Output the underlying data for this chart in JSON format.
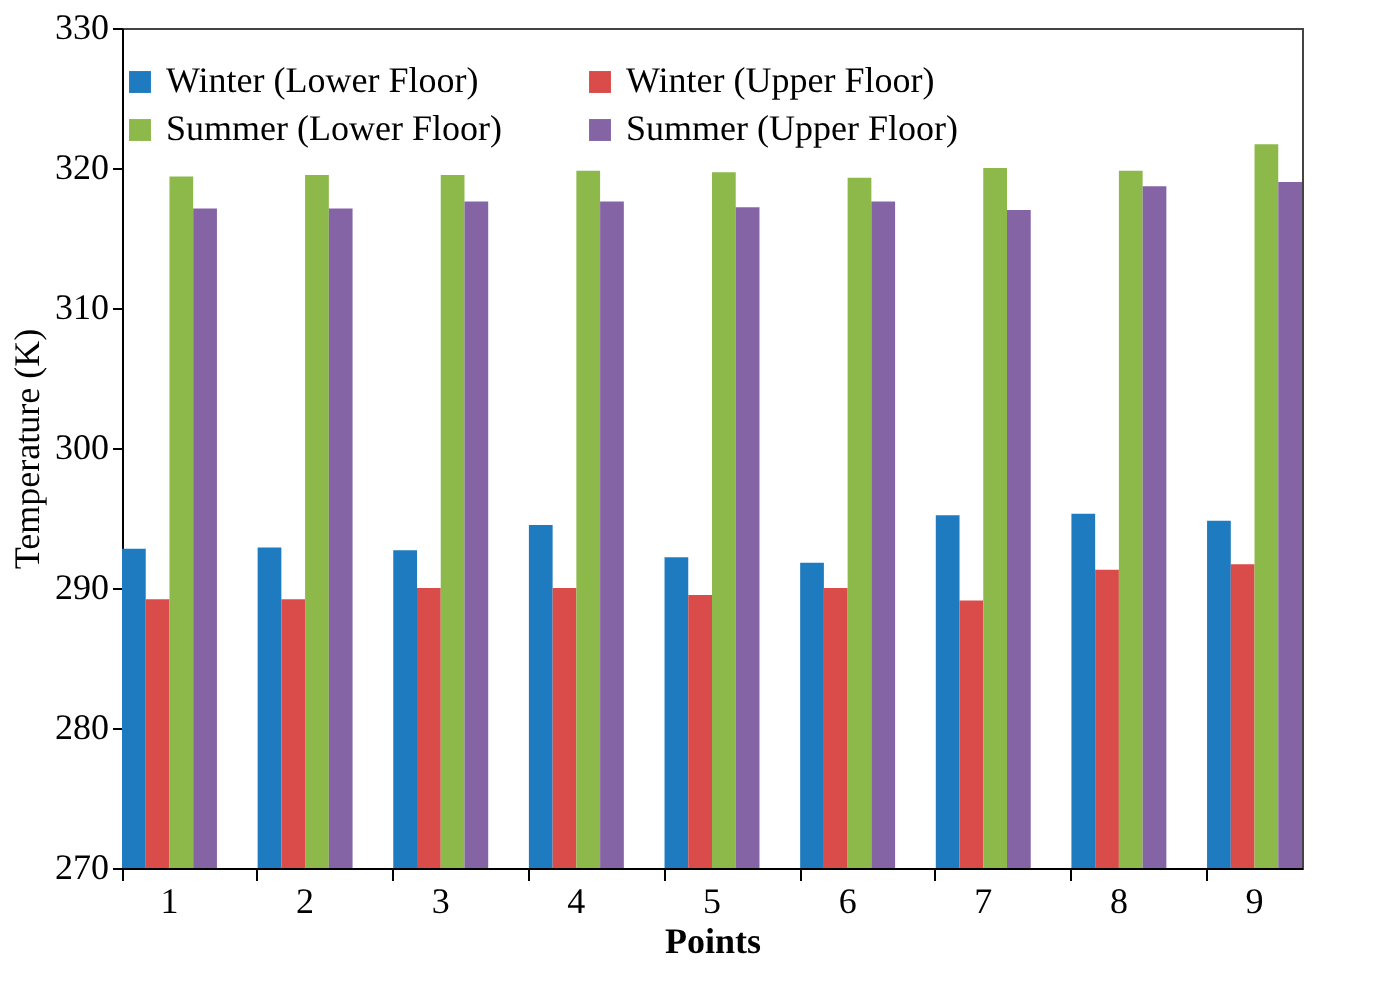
{
  "chart_data": {
    "type": "bar",
    "xlabel": "Points",
    "ylabel": "Temperature (K)",
    "categories": [
      "1",
      "2",
      "3",
      "4",
      "5",
      "6",
      "7",
      "8",
      "9"
    ],
    "series": [
      {
        "name": "Winter (Lower Floor)",
        "color": "#1f7bbf",
        "values": [
          292.8,
          292.9,
          292.7,
          294.5,
          292.2,
          291.8,
          295.2,
          295.3,
          294.8
        ]
      },
      {
        "name": "Winter (Upper Floor)",
        "color": "#d94c4a",
        "values": [
          289.2,
          289.2,
          290.0,
          290.0,
          289.5,
          290.0,
          289.1,
          291.3,
          291.7
        ]
      },
      {
        "name": "Summer (Lower Floor)",
        "color": "#8cb94a",
        "values": [
          319.4,
          319.5,
          319.5,
          319.8,
          319.7,
          319.3,
          320.0,
          319.8,
          321.7
        ]
      },
      {
        "name": "Summer (Upper Floor)",
        "color": "#8564a5",
        "values": [
          317.1,
          317.1,
          317.6,
          317.6,
          317.2,
          317.6,
          317.0,
          318.7,
          319.0
        ]
      }
    ],
    "ylim": [
      270,
      330
    ],
    "yticks": [
      270,
      280,
      290,
      300,
      310,
      320,
      330
    ],
    "grid": false,
    "legend": "top"
  }
}
